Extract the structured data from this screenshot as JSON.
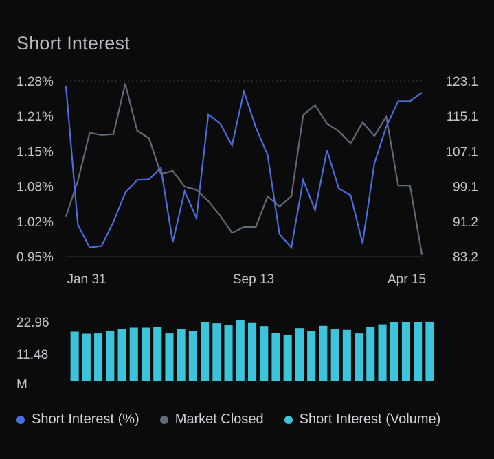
{
  "chart_data": {
    "type": "line",
    "title": "Short Interest",
    "x_ticks": [
      "Jan 31",
      "Sep 13",
      "Apr 15"
    ],
    "left_axis": {
      "tick_labels": [
        "1.28%",
        "1.21%",
        "1.15%",
        "1.08%",
        "1.02%",
        "0.95%"
      ],
      "range": [
        0.95,
        1.28
      ]
    },
    "right_axis": {
      "tick_labels": [
        "123.1",
        "115.1",
        "107.1",
        "99.1",
        "91.2",
        "83.2"
      ],
      "range": [
        83.2,
        123.1
      ]
    },
    "volume_axis": {
      "tick_labels": [
        "22.96",
        "11.48",
        "M"
      ],
      "range": [
        0,
        22.96
      ]
    },
    "series": [
      {
        "name": "Short Interest (%)",
        "axis": "left",
        "color": "#4a6ee0",
        "values": [
          1.27,
          1.01,
          0.967,
          0.97,
          1.015,
          1.07,
          1.094,
          1.095,
          1.117,
          0.977,
          1.073,
          1.022,
          1.217,
          1.2,
          1.159,
          1.26,
          1.193,
          1.141,
          0.992,
          0.967,
          1.094,
          1.037,
          1.15,
          1.078,
          1.065,
          0.975,
          1.125,
          1.194,
          1.242,
          1.242,
          1.258
        ]
      },
      {
        "name": "Market Closed",
        "axis": "right",
        "color": "#5f6b7a",
        "values": [
          92.3,
          100.4,
          111.3,
          110.8,
          111.0,
          122.5,
          111.8,
          110.1,
          102.0,
          102.7,
          99.1,
          98.4,
          95.8,
          92.5,
          88.6,
          89.9,
          89.9,
          96.9,
          94.6,
          96.9,
          115.4,
          117.6,
          113.4,
          111.7,
          108.9,
          113.7,
          110.6,
          115.0,
          99.4,
          99.4,
          83.7
        ]
      }
    ],
    "volume": {
      "name": "Short Interest (Volume)",
      "color": "#3cc4db",
      "values": [
        19.1,
        18.3,
        18.4,
        19.3,
        20.2,
        20.7,
        20.7,
        20.9,
        18.4,
        20.1,
        19.3,
        22.9,
        22.4,
        21.8,
        23.6,
        22.5,
        21.3,
        18.6,
        17.9,
        20.5,
        19.5,
        21.4,
        20.2,
        19.8,
        18.4,
        20.9,
        22.0,
        22.8,
        22.9,
        22.9,
        23.0
      ]
    },
    "legend": [
      "Short Interest (%)",
      "Market Closed",
      "Short Interest (Volume)"
    ],
    "legend_position": "bottom"
  }
}
